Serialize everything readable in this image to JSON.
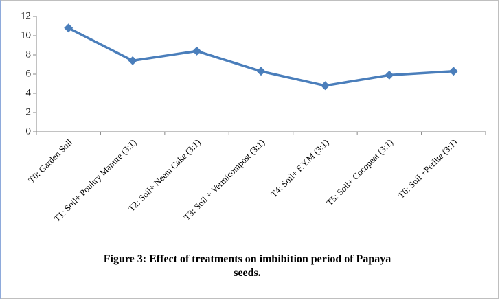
{
  "chart_data": {
    "type": "line",
    "title": "Figure 3: Effect of treatments on imbibition period of Papaya seeds.",
    "categories": [
      "T0: Garden Soil",
      "T1: Soil+ Poultry Manure (3:1)",
      "T2: Soil+ Neem Cake (3:1)",
      "T3: Soil + Vermicompost (3:1)",
      "T4: Soil+ F.Y.M (3:1)",
      "T5: Soil+ Cocopeat (3:1)",
      "T6: Soil +Perlite (3:1)"
    ],
    "series": [
      {
        "name": "Imbibition period",
        "color": "#4a7ebb",
        "values": [
          10.8,
          7.4,
          8.4,
          6.3,
          4.8,
          5.9,
          6.3
        ]
      }
    ],
    "ylim": [
      0,
      12
    ],
    "yticks": [
      0,
      2,
      4,
      6,
      8,
      10,
      12
    ],
    "grid": false
  }
}
